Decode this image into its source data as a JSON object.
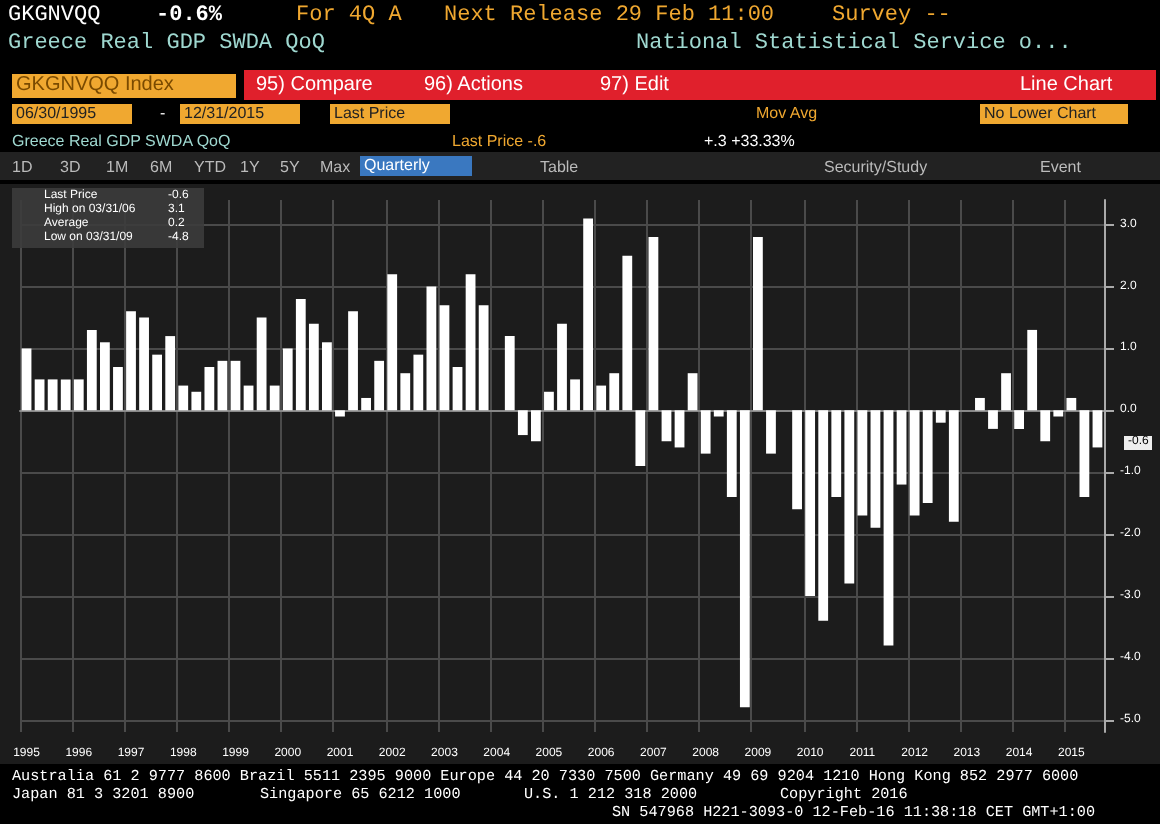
{
  "chart_data": {
    "type": "bar",
    "title": "Greece Real GDP SWDA QoQ",
    "subtitle": "Greece Real GDP SWDA QoQ",
    "categories": [
      "1995",
      null,
      null,
      null,
      "1996",
      null,
      null,
      null,
      "1997",
      null,
      null,
      null,
      "1998",
      null,
      null,
      null,
      "1999",
      null,
      null,
      null,
      "2000",
      null,
      null,
      null,
      "2001",
      null,
      null,
      null,
      "2002",
      null,
      null,
      null,
      "2003",
      null,
      null,
      null,
      "2004",
      null,
      null,
      null,
      "2005",
      null,
      null,
      null,
      "2006",
      null,
      null,
      null,
      "2007",
      null,
      null,
      null,
      "2008",
      null,
      null,
      null,
      "2009",
      null,
      null,
      null,
      "2010",
      null,
      null,
      null,
      "2011",
      null,
      null,
      null,
      "2012",
      null,
      null,
      null,
      "2013",
      null,
      null,
      null,
      "2014",
      null,
      null,
      null,
      "2015",
      null,
      null
    ],
    "series": [
      {
        "color": "#ffffff",
        "values": [
          1.0,
          0.5,
          0.5,
          0.5,
          0.5,
          1.3,
          1.1,
          0.7,
          1.6,
          1.5,
          0.9,
          1.2,
          0.4,
          0.3,
          0.7,
          0.8,
          0.8,
          0.4,
          1.5,
          0.4,
          1.0,
          1.8,
          1.4,
          1.1,
          -0.1,
          1.6,
          0.2,
          0.8,
          2.2,
          0.6,
          0.9,
          2.0,
          1.7,
          0.7,
          2.2,
          1.7,
          0.0,
          1.2,
          -0.4,
          -0.5,
          0.3,
          1.4,
          0.5,
          3.1,
          0.4,
          0.6,
          2.5,
          -0.9,
          2.8,
          -0.5,
          -0.6,
          0.6,
          -0.7,
          -0.1,
          -1.4,
          -4.8,
          2.8,
          -0.7,
          0.0,
          -1.6,
          -3.0,
          -3.4,
          -1.4,
          -2.8,
          -1.7,
          -1.9,
          -3.8,
          -1.2,
          -1.7,
          -1.5,
          -0.2,
          -1.8,
          0.0,
          0.2,
          -0.3,
          0.6,
          -0.3,
          1.3,
          -0.5,
          -0.1,
          0.2,
          -1.4,
          -0.6
        ]
      }
    ],
    "ylim": [
      -5.2,
      3.4
    ],
    "yticks": [
      {
        "value": -5,
        "label": "-5.0"
      },
      {
        "value": -4,
        "label": "-4.0"
      },
      {
        "value": -3,
        "label": "-3.0"
      },
      {
        "value": -2,
        "label": "-2.0"
      },
      {
        "value": -1,
        "label": "-1.0"
      },
      {
        "value": 0,
        "label": "0.0"
      },
      {
        "value": 1,
        "label": "1.0"
      },
      {
        "value": 2,
        "label": "2.0"
      },
      {
        "value": 3,
        "label": "3.0"
      }
    ],
    "grid": true,
    "annotations": [
      "GKGNVQQ",
      "-0.6%",
      "For 4Q A",
      "Next Release 29 Feb 11:00",
      "Survey --",
      "National Statistical Service o...",
      "GKGNVQQ Index",
      "95) Compare",
      "96) Actions",
      "97) Edit",
      "Line Chart",
      "06/30/1995",
      "-",
      "12/31/2015",
      "Last Price",
      "Mov Avg",
      "No Lower Chart",
      "Last Price -.6",
      "+.3 +33.33%",
      "1D",
      "3D",
      "1M",
      "6M",
      "YTD",
      "1Y",
      "5Y",
      "Max",
      "Quarterly",
      "Table",
      "Security/Study",
      "Event",
      "Last Price",
      "-0.6",
      "High on 03/31/06",
      "3.1",
      "Average",
      "0.2",
      "Low on 03/31/09",
      "-4.8",
      "Australia 61 2 9777 8600 Brazil 5511 2395 9000 Europe 44 20 7330 7500 Germany 49 69 9204 1210 Hong Kong 852 2977 6000",
      "Japan 81 3 3201 8900",
      "Singapore 65 6212 1000",
      "U.S. 1 212 318 2000",
      "Copyright 2016",
      "SN 547968 H221-3093-0 12-Feb-16 11:38:18 CET GMT+1:00",
      "-0.6"
    ]
  }
}
